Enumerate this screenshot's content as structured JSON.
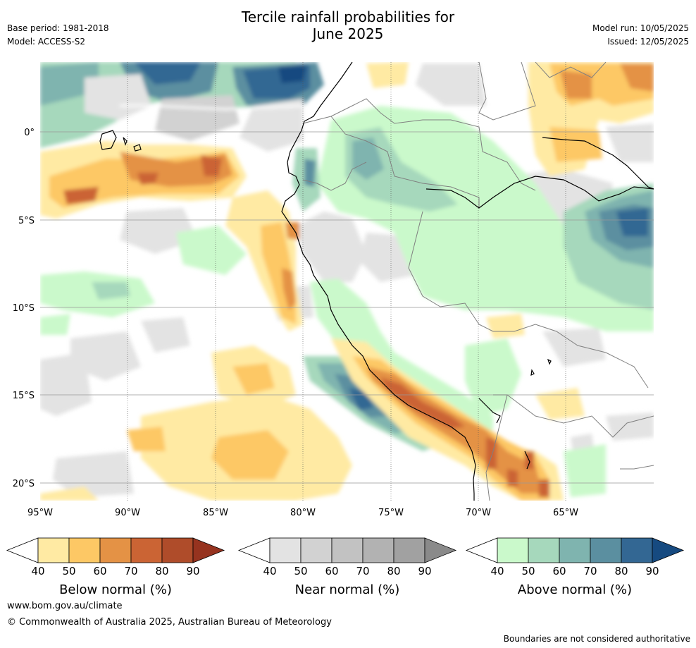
{
  "title_line1": "Tercile rainfall probabilities for",
  "title_line2": "June 2025",
  "base_period": "Base period: 1981-2018",
  "model": "Model: ACCESS-S2",
  "model_run": "Model run: 10/05/2025",
  "issued": "Issued: 12/05/2025",
  "lon_ticks": [
    "95°W",
    "90°W",
    "85°W",
    "80°W",
    "75°W",
    "70°W",
    "65°W"
  ],
  "lat_ticks": [
    "0°",
    "5°S",
    "10°S",
    "15°S",
    "20°S"
  ],
  "colorbars": [
    {
      "title": "Below normal (%)",
      "labels": [
        "40",
        "50",
        "60",
        "70",
        "80",
        "90"
      ],
      "colors": [
        "#ffeaa3",
        "#fdc865",
        "#e49245",
        "#cb6434",
        "#af4c2a",
        "#96331f"
      ]
    },
    {
      "title": "Near normal (%)",
      "labels": [
        "40",
        "50",
        "60",
        "70",
        "80",
        "90"
      ],
      "colors": [
        "#e3e3e3",
        "#d2d2d2",
        "#c2c2c2",
        "#b2b2b2",
        "#a1a1a1",
        "#8a8a8a"
      ]
    },
    {
      "title": "Above normal (%)",
      "labels": [
        "40",
        "50",
        "60",
        "70",
        "80",
        "90"
      ],
      "colors": [
        "#caf9cb",
        "#a6d8bc",
        "#7fb4af",
        "#5b8fa0",
        "#336793",
        "#164a80"
      ]
    }
  ],
  "website": "www.bom.gov.au/climate",
  "copyright": "© Commonwealth of Australia 2025, Australian Bureau of Meteorology",
  "disclaimer": "Boundaries are not considered authoritative"
}
